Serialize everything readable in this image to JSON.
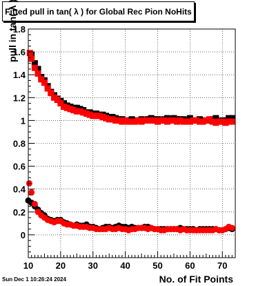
{
  "title": "Fitted pull in tan( λ ) for Global Rec Pion NoHits",
  "timestamp": "Sun Dec  1 10:26:24 2024",
  "chart_data": {
    "type": "scatter",
    "title": "Fitted pull in tan( λ ) for Global Rec Pion NoHits",
    "xlabel": "No. of Fit Points",
    "ylabel": "pull in tan( λ )",
    "xlim": [
      10,
      74
    ],
    "ylim": [
      -0.2,
      1.8
    ],
    "xticks": [
      10,
      20,
      30,
      40,
      50,
      60,
      70
    ],
    "yticks": [
      0,
      0.2,
      0.4,
      0.6,
      0.8,
      1,
      1.2,
      1.4,
      1.6,
      1.8
    ],
    "ytick_labels": [
      "0",
      "0.2",
      "0.4",
      "0.6",
      "0.8",
      "1",
      "1.2",
      "1.4",
      "1.6",
      "1.8"
    ],
    "grid": true,
    "series": [
      {
        "marker": "square",
        "color": "#000000",
        "points": [
          {
            "x": 11,
            "y": 1.57
          },
          {
            "x": 12,
            "y": 1.5
          },
          {
            "x": 13,
            "y": 1.45
          },
          {
            "x": 14,
            "y": 1.38
          },
          {
            "x": 15,
            "y": 1.35
          },
          {
            "x": 16,
            "y": 1.3
          },
          {
            "x": 17,
            "y": 1.25
          },
          {
            "x": 18,
            "y": 1.22
          },
          {
            "x": 19,
            "y": 1.19
          },
          {
            "x": 20,
            "y": 1.17
          },
          {
            "x": 21,
            "y": 1.15
          },
          {
            "x": 22,
            "y": 1.13
          },
          {
            "x": 23,
            "y": 1.12
          },
          {
            "x": 24,
            "y": 1.11
          },
          {
            "x": 25,
            "y": 1.11
          },
          {
            "x": 26,
            "y": 1.1
          },
          {
            "x": 27,
            "y": 1.09
          },
          {
            "x": 28,
            "y": 1.07
          },
          {
            "x": 29,
            "y": 1.07
          },
          {
            "x": 30,
            "y": 1.06
          },
          {
            "x": 31,
            "y": 1.06
          },
          {
            "x": 32,
            "y": 1.05
          },
          {
            "x": 33,
            "y": 1.05
          },
          {
            "x": 34,
            "y": 1.04
          },
          {
            "x": 35,
            "y": 1.03
          },
          {
            "x": 36,
            "y": 1.03
          },
          {
            "x": 37,
            "y": 1.02
          },
          {
            "x": 38,
            "y": 1.01
          },
          {
            "x": 39,
            "y": 1.01
          },
          {
            "x": 40,
            "y": 1.0
          },
          {
            "x": 41,
            "y": 1.0
          },
          {
            "x": 42,
            "y": 1.01
          },
          {
            "x": 43,
            "y": 1.0
          },
          {
            "x": 44,
            "y": 1.0
          },
          {
            "x": 45,
            "y": 1.01
          },
          {
            "x": 46,
            "y": 1.0
          },
          {
            "x": 47,
            "y": 1.01
          },
          {
            "x": 48,
            "y": 1.02
          },
          {
            "x": 49,
            "y": 1.01
          },
          {
            "x": 50,
            "y": 1.01
          },
          {
            "x": 51,
            "y": 1.0
          },
          {
            "x": 52,
            "y": 1.01
          },
          {
            "x": 53,
            "y": 1.02
          },
          {
            "x": 54,
            "y": 1.01
          },
          {
            "x": 55,
            "y": 1.02
          },
          {
            "x": 56,
            "y": 1.01
          },
          {
            "x": 57,
            "y": 1.01
          },
          {
            "x": 58,
            "y": 1.01
          },
          {
            "x": 59,
            "y": 1.0
          },
          {
            "x": 60,
            "y": 1.02
          },
          {
            "x": 61,
            "y": 1.0
          },
          {
            "x": 62,
            "y": 1.0
          },
          {
            "x": 63,
            "y": 1.01
          },
          {
            "x": 64,
            "y": 1.0
          },
          {
            "x": 65,
            "y": 1.0
          },
          {
            "x": 66,
            "y": 1.0
          },
          {
            "x": 67,
            "y": 1.01
          },
          {
            "x": 68,
            "y": 1.02
          },
          {
            "x": 69,
            "y": 0.99
          },
          {
            "x": 70,
            "y": 1.0
          },
          {
            "x": 71,
            "y": 1.0
          },
          {
            "x": 72,
            "y": 1.02
          },
          {
            "x": 73,
            "y": 1.02
          }
        ]
      },
      {
        "marker": "square",
        "color": "#ff0000",
        "points": [
          {
            "x": 10.5,
            "y": 1.59
          },
          {
            "x": 11,
            "y": 1.54
          },
          {
            "x": 12,
            "y": 1.46
          },
          {
            "x": 13,
            "y": 1.41
          },
          {
            "x": 14,
            "y": 1.36
          },
          {
            "x": 15,
            "y": 1.33
          },
          {
            "x": 16,
            "y": 1.28
          },
          {
            "x": 17,
            "y": 1.24
          },
          {
            "x": 18,
            "y": 1.2
          },
          {
            "x": 19,
            "y": 1.18
          },
          {
            "x": 20,
            "y": 1.15
          },
          {
            "x": 21,
            "y": 1.12
          },
          {
            "x": 22,
            "y": 1.11
          },
          {
            "x": 23,
            "y": 1.1
          },
          {
            "x": 24,
            "y": 1.09
          },
          {
            "x": 25,
            "y": 1.08
          },
          {
            "x": 26,
            "y": 1.08
          },
          {
            "x": 27,
            "y": 1.07
          },
          {
            "x": 28,
            "y": 1.06
          },
          {
            "x": 29,
            "y": 1.05
          },
          {
            "x": 30,
            "y": 1.04
          },
          {
            "x": 31,
            "y": 1.04
          },
          {
            "x": 32,
            "y": 1.04
          },
          {
            "x": 33,
            "y": 1.03
          },
          {
            "x": 34,
            "y": 1.02
          },
          {
            "x": 35,
            "y": 1.01
          },
          {
            "x": 36,
            "y": 1.01
          },
          {
            "x": 37,
            "y": 1.0
          },
          {
            "x": 38,
            "y": 1.0
          },
          {
            "x": 39,
            "y": 0.99
          },
          {
            "x": 40,
            "y": 1.0
          },
          {
            "x": 41,
            "y": 0.99
          },
          {
            "x": 42,
            "y": 0.99
          },
          {
            "x": 43,
            "y": 0.99
          },
          {
            "x": 44,
            "y": 1.0
          },
          {
            "x": 45,
            "y": 0.99
          },
          {
            "x": 46,
            "y": 1.0
          },
          {
            "x": 47,
            "y": 1.0
          },
          {
            "x": 48,
            "y": 1.0
          },
          {
            "x": 49,
            "y": 1.0
          },
          {
            "x": 50,
            "y": 0.99
          },
          {
            "x": 51,
            "y": 1.0
          },
          {
            "x": 52,
            "y": 1.0
          },
          {
            "x": 53,
            "y": 0.99
          },
          {
            "x": 54,
            "y": 1.0
          },
          {
            "x": 55,
            "y": 1.0
          },
          {
            "x": 56,
            "y": 0.99
          },
          {
            "x": 57,
            "y": 1.0
          },
          {
            "x": 58,
            "y": 0.99
          },
          {
            "x": 59,
            "y": 0.99
          },
          {
            "x": 60,
            "y": 0.99
          },
          {
            "x": 61,
            "y": 1.0
          },
          {
            "x": 62,
            "y": 1.0
          },
          {
            "x": 63,
            "y": 0.99
          },
          {
            "x": 64,
            "y": 0.99
          },
          {
            "x": 65,
            "y": 1.0
          },
          {
            "x": 66,
            "y": 1.01
          },
          {
            "x": 67,
            "y": 0.99
          },
          {
            "x": 68,
            "y": 0.98
          },
          {
            "x": 69,
            "y": 0.99
          },
          {
            "x": 70,
            "y": 0.99
          },
          {
            "x": 71,
            "y": 0.98
          },
          {
            "x": 72,
            "y": 0.99
          },
          {
            "x": 73,
            "y": 0.99
          }
        ]
      },
      {
        "marker": "circle",
        "color": "#000000",
        "points": [
          {
            "x": 10,
            "y": 0.3
          },
          {
            "x": 11,
            "y": 0.28
          },
          {
            "x": 12,
            "y": 0.25
          },
          {
            "x": 13,
            "y": 0.22
          },
          {
            "x": 14,
            "y": 0.19
          },
          {
            "x": 15,
            "y": 0.17
          },
          {
            "x": 16,
            "y": 0.14
          },
          {
            "x": 17,
            "y": 0.13
          },
          {
            "x": 18,
            "y": 0.12
          },
          {
            "x": 19,
            "y": 0.13
          },
          {
            "x": 20,
            "y": 0.13
          },
          {
            "x": 21,
            "y": 0.11
          },
          {
            "x": 22,
            "y": 0.1
          },
          {
            "x": 23,
            "y": 0.09
          },
          {
            "x": 24,
            "y": 0.08
          },
          {
            "x": 25,
            "y": 0.09
          },
          {
            "x": 26,
            "y": 0.08
          },
          {
            "x": 27,
            "y": 0.08
          },
          {
            "x": 28,
            "y": 0.09
          },
          {
            "x": 29,
            "y": 0.07
          },
          {
            "x": 30,
            "y": 0.07
          },
          {
            "x": 31,
            "y": 0.06
          },
          {
            "x": 32,
            "y": 0.05
          },
          {
            "x": 33,
            "y": 0.06
          },
          {
            "x": 34,
            "y": 0.07
          },
          {
            "x": 35,
            "y": 0.07
          },
          {
            "x": 36,
            "y": 0.06
          },
          {
            "x": 37,
            "y": 0.07
          },
          {
            "x": 38,
            "y": 0.08
          },
          {
            "x": 39,
            "y": 0.07
          },
          {
            "x": 40,
            "y": 0.07
          },
          {
            "x": 41,
            "y": 0.06
          },
          {
            "x": 42,
            "y": 0.07
          },
          {
            "x": 43,
            "y": 0.06
          },
          {
            "x": 44,
            "y": 0.06
          },
          {
            "x": 45,
            "y": 0.06
          },
          {
            "x": 46,
            "y": 0.07
          },
          {
            "x": 47,
            "y": 0.07
          },
          {
            "x": 48,
            "y": 0.06
          },
          {
            "x": 49,
            "y": 0.05
          },
          {
            "x": 50,
            "y": 0.05
          },
          {
            "x": 51,
            "y": 0.05
          },
          {
            "x": 52,
            "y": 0.05
          },
          {
            "x": 53,
            "y": 0.05
          },
          {
            "x": 54,
            "y": 0.05
          },
          {
            "x": 55,
            "y": 0.05
          },
          {
            "x": 56,
            "y": 0.05
          },
          {
            "x": 57,
            "y": 0.06
          },
          {
            "x": 58,
            "y": 0.05
          },
          {
            "x": 59,
            "y": 0.05
          },
          {
            "x": 60,
            "y": 0.05
          },
          {
            "x": 61,
            "y": 0.05
          },
          {
            "x": 62,
            "y": 0.04
          },
          {
            "x": 63,
            "y": 0.05
          },
          {
            "x": 64,
            "y": 0.05
          },
          {
            "x": 65,
            "y": 0.05
          },
          {
            "x": 66,
            "y": 0.05
          },
          {
            "x": 67,
            "y": 0.05
          },
          {
            "x": 68,
            "y": 0.05
          },
          {
            "x": 69,
            "y": 0.04
          },
          {
            "x": 70,
            "y": 0.04
          },
          {
            "x": 71,
            "y": 0.05
          },
          {
            "x": 72,
            "y": 0.06
          },
          {
            "x": 73,
            "y": 0.05
          }
        ]
      },
      {
        "marker": "circle",
        "color": "#ff0000",
        "points": [
          {
            "x": 10.3,
            "y": 0.45
          },
          {
            "x": 11,
            "y": 0.37
          },
          {
            "x": 12,
            "y": 0.27
          },
          {
            "x": 13,
            "y": 0.2
          },
          {
            "x": 14,
            "y": 0.17
          },
          {
            "x": 15,
            "y": 0.15
          },
          {
            "x": 16,
            "y": 0.13
          },
          {
            "x": 17,
            "y": 0.12
          },
          {
            "x": 18,
            "y": 0.11
          },
          {
            "x": 19,
            "y": 0.12
          },
          {
            "x": 20,
            "y": 0.12
          },
          {
            "x": 21,
            "y": 0.1
          },
          {
            "x": 22,
            "y": 0.09
          },
          {
            "x": 23,
            "y": 0.09
          },
          {
            "x": 24,
            "y": 0.08
          },
          {
            "x": 25,
            "y": 0.08
          },
          {
            "x": 26,
            "y": 0.07
          },
          {
            "x": 27,
            "y": 0.07
          },
          {
            "x": 28,
            "y": 0.07
          },
          {
            "x": 29,
            "y": 0.06
          },
          {
            "x": 30,
            "y": 0.06
          },
          {
            "x": 31,
            "y": 0.05
          },
          {
            "x": 32,
            "y": 0.05
          },
          {
            "x": 33,
            "y": 0.05
          },
          {
            "x": 34,
            "y": 0.05
          },
          {
            "x": 35,
            "y": 0.06
          },
          {
            "x": 36,
            "y": 0.05
          },
          {
            "x": 37,
            "y": 0.05
          },
          {
            "x": 38,
            "y": 0.06
          },
          {
            "x": 39,
            "y": 0.05
          },
          {
            "x": 40,
            "y": 0.05
          },
          {
            "x": 41,
            "y": 0.04
          },
          {
            "x": 42,
            "y": 0.05
          },
          {
            "x": 43,
            "y": 0.05
          },
          {
            "x": 44,
            "y": 0.06
          },
          {
            "x": 45,
            "y": 0.06
          },
          {
            "x": 46,
            "y": 0.06
          },
          {
            "x": 47,
            "y": 0.05
          },
          {
            "x": 48,
            "y": 0.06
          },
          {
            "x": 49,
            "y": 0.05
          },
          {
            "x": 50,
            "y": 0.05
          },
          {
            "x": 51,
            "y": 0.04
          },
          {
            "x": 52,
            "y": 0.04
          },
          {
            "x": 53,
            "y": 0.05
          },
          {
            "x": 54,
            "y": 0.05
          },
          {
            "x": 55,
            "y": 0.05
          },
          {
            "x": 56,
            "y": 0.05
          },
          {
            "x": 57,
            "y": 0.04
          },
          {
            "x": 58,
            "y": 0.05
          },
          {
            "x": 59,
            "y": 0.04
          },
          {
            "x": 60,
            "y": 0.04
          },
          {
            "x": 61,
            "y": 0.04
          },
          {
            "x": 62,
            "y": 0.04
          },
          {
            "x": 63,
            "y": 0.04
          },
          {
            "x": 64,
            "y": 0.04
          },
          {
            "x": 65,
            "y": 0.04
          },
          {
            "x": 66,
            "y": 0.04
          },
          {
            "x": 67,
            "y": 0.04
          },
          {
            "x": 68,
            "y": 0.05
          },
          {
            "x": 69,
            "y": 0.04
          },
          {
            "x": 70,
            "y": 0.04
          },
          {
            "x": 71,
            "y": 0.05
          },
          {
            "x": 72,
            "y": 0.07
          },
          {
            "x": 73,
            "y": 0.06
          }
        ]
      }
    ]
  }
}
